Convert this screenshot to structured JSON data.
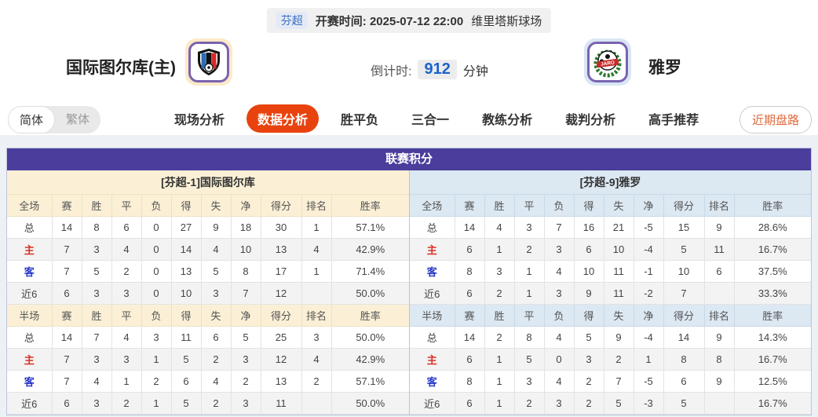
{
  "header": {
    "league_badge": "芬超",
    "kickoff_label": "开赛时间:",
    "kickoff_time": "2025-07-12 22:00",
    "venue": "维里塔斯球场",
    "home_team": "国际图尔库(主)",
    "away_team": "雅罗",
    "countdown_label": "倒计时:",
    "countdown_value": "912",
    "countdown_unit": "分钟",
    "away_logo_text": "JARO"
  },
  "nav": {
    "lang": {
      "simplified": "简体",
      "traditional": "繁体"
    },
    "tabs": [
      {
        "label": "现场分析",
        "active": false
      },
      {
        "label": "数据分析",
        "active": true
      },
      {
        "label": "胜平负",
        "active": false
      },
      {
        "label": "三合一",
        "active": false
      },
      {
        "label": "教练分析",
        "active": false
      },
      {
        "label": "裁判分析",
        "active": false
      },
      {
        "label": "高手推荐",
        "active": false
      }
    ],
    "recent_button": "近期盘路"
  },
  "colors": {
    "panel_header": "#4a3d9c",
    "active_tab": "#e8430e",
    "left_subheader_bg": "#fbf0d6",
    "right_subheader_bg": "#dce8f2",
    "home_row_label": "#d93025",
    "away_row_label": "#2637c8",
    "countdown_value": "#1b64c8"
  },
  "section": {
    "title": "联赛积分",
    "left": {
      "subtitle": "[芬超-1]国际图尔库",
      "full": {
        "headers": [
          "全场",
          "赛",
          "胜",
          "平",
          "负",
          "得",
          "失",
          "净",
          "得分",
          "排名",
          "胜率"
        ],
        "rows": [
          {
            "label": "总",
            "type": "total",
            "cells": [
              "14",
              "8",
              "6",
              "0",
              "27",
              "9",
              "18",
              "30",
              "1",
              "57.1%"
            ]
          },
          {
            "label": "主",
            "type": "home",
            "cells": [
              "7",
              "3",
              "4",
              "0",
              "14",
              "4",
              "10",
              "13",
              "4",
              "42.9%"
            ]
          },
          {
            "label": "客",
            "type": "away",
            "cells": [
              "7",
              "5",
              "2",
              "0",
              "13",
              "5",
              "8",
              "17",
              "1",
              "71.4%"
            ]
          },
          {
            "label": "近6",
            "type": "recent",
            "cells": [
              "6",
              "3",
              "3",
              "0",
              "10",
              "3",
              "7",
              "12",
              "",
              "50.0%"
            ]
          }
        ]
      },
      "half": {
        "headers": [
          "半场",
          "赛",
          "胜",
          "平",
          "负",
          "得",
          "失",
          "净",
          "得分",
          "排名",
          "胜率"
        ],
        "rows": [
          {
            "label": "总",
            "type": "total",
            "cells": [
              "14",
              "7",
              "4",
              "3",
              "11",
              "6",
              "5",
              "25",
              "3",
              "50.0%"
            ]
          },
          {
            "label": "主",
            "type": "home",
            "cells": [
              "7",
              "3",
              "3",
              "1",
              "5",
              "2",
              "3",
              "12",
              "4",
              "42.9%"
            ]
          },
          {
            "label": "客",
            "type": "away",
            "cells": [
              "7",
              "4",
              "1",
              "2",
              "6",
              "4",
              "2",
              "13",
              "2",
              "57.1%"
            ]
          },
          {
            "label": "近6",
            "type": "recent",
            "cells": [
              "6",
              "3",
              "2",
              "1",
              "5",
              "2",
              "3",
              "11",
              "",
              "50.0%"
            ]
          }
        ]
      }
    },
    "right": {
      "subtitle": "[芬超-9]雅罗",
      "full": {
        "headers": [
          "全场",
          "赛",
          "胜",
          "平",
          "负",
          "得",
          "失",
          "净",
          "得分",
          "排名",
          "胜率"
        ],
        "rows": [
          {
            "label": "总",
            "type": "total",
            "cells": [
              "14",
              "4",
              "3",
              "7",
              "16",
              "21",
              "-5",
              "15",
              "9",
              "28.6%"
            ]
          },
          {
            "label": "主",
            "type": "home",
            "cells": [
              "6",
              "1",
              "2",
              "3",
              "6",
              "10",
              "-4",
              "5",
              "11",
              "16.7%"
            ]
          },
          {
            "label": "客",
            "type": "away",
            "cells": [
              "8",
              "3",
              "1",
              "4",
              "10",
              "11",
              "-1",
              "10",
              "6",
              "37.5%"
            ]
          },
          {
            "label": "近6",
            "type": "recent",
            "cells": [
              "6",
              "2",
              "1",
              "3",
              "9",
              "11",
              "-2",
              "7",
              "",
              "33.3%"
            ]
          }
        ]
      },
      "half": {
        "headers": [
          "半场",
          "赛",
          "胜",
          "平",
          "负",
          "得",
          "失",
          "净",
          "得分",
          "排名",
          "胜率"
        ],
        "rows": [
          {
            "label": "总",
            "type": "total",
            "cells": [
              "14",
              "2",
              "8",
              "4",
              "5",
              "9",
              "-4",
              "14",
              "9",
              "14.3%"
            ]
          },
          {
            "label": "主",
            "type": "home",
            "cells": [
              "6",
              "1",
              "5",
              "0",
              "3",
              "2",
              "1",
              "8",
              "8",
              "16.7%"
            ]
          },
          {
            "label": "客",
            "type": "away",
            "cells": [
              "8",
              "1",
              "3",
              "4",
              "2",
              "7",
              "-5",
              "6",
              "9",
              "12.5%"
            ]
          },
          {
            "label": "近6",
            "type": "recent",
            "cells": [
              "6",
              "1",
              "2",
              "3",
              "2",
              "5",
              "-3",
              "5",
              "",
              "16.7%"
            ]
          }
        ]
      }
    }
  }
}
